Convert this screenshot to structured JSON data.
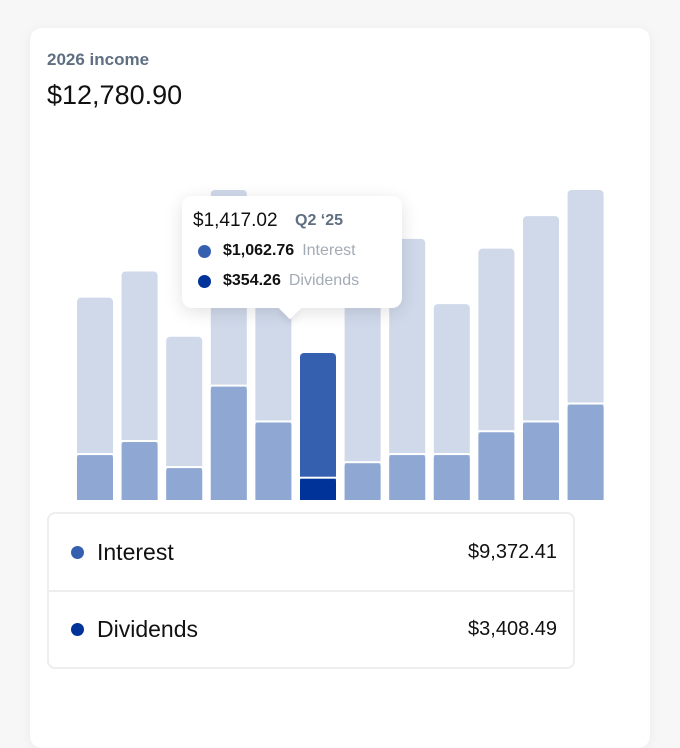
{
  "card": {
    "subtitle": "2026 income",
    "total": "$12,780.90"
  },
  "tooltip": {
    "total": "$1,417.02",
    "period": "Q2 ‘25",
    "rows": [
      {
        "amount": "$1,062.76",
        "label": "Interest"
      },
      {
        "amount": "$354.26",
        "label": "Dividends"
      }
    ]
  },
  "legend": [
    {
      "name": "Interest",
      "value": "$9,372.41"
    },
    {
      "name": "Dividends",
      "value": "$3,408.49"
    }
  ],
  "colors": {
    "interest": "#3560b0",
    "dividends": "#003399",
    "bar_background": "#cfd9ea",
    "bar_inactive_segment": "#8fa8d3",
    "highlight_top": "#3560b0",
    "highlight_bottom": "#003399"
  },
  "chart_data": {
    "type": "bar",
    "stacked": true,
    "categories": [
      "1",
      "2",
      "3",
      "4",
      "5",
      "6",
      "7",
      "8",
      "9",
      "10",
      "11",
      "12"
    ],
    "series": [
      {
        "name": "Interest",
        "values": [
          0,
          0,
          0,
          0,
          0,
          1062.76,
          0,
          0,
          0,
          0,
          0,
          0
        ]
      },
      {
        "name": "Dividends",
        "values": [
          0,
          0,
          0,
          0,
          0,
          354.26,
          0,
          0,
          0,
          0,
          0,
          0
        ]
      }
    ],
    "background_fraction": [
      0.67,
      0.75,
      0.55,
      1.0,
      0.92,
      0.5,
      0.8,
      0.85,
      0.65,
      0.82,
      0.92,
      1.0
    ],
    "segment_fraction": [
      0.19,
      0.23,
      0.15,
      0.4,
      0.29,
      0.45,
      0.165,
      0.19,
      0.19,
      0.26,
      0.29,
      0.345
    ],
    "highlight_index": 5,
    "highlight_split": 0.235,
    "grid": false,
    "legend_position": "bottom"
  }
}
